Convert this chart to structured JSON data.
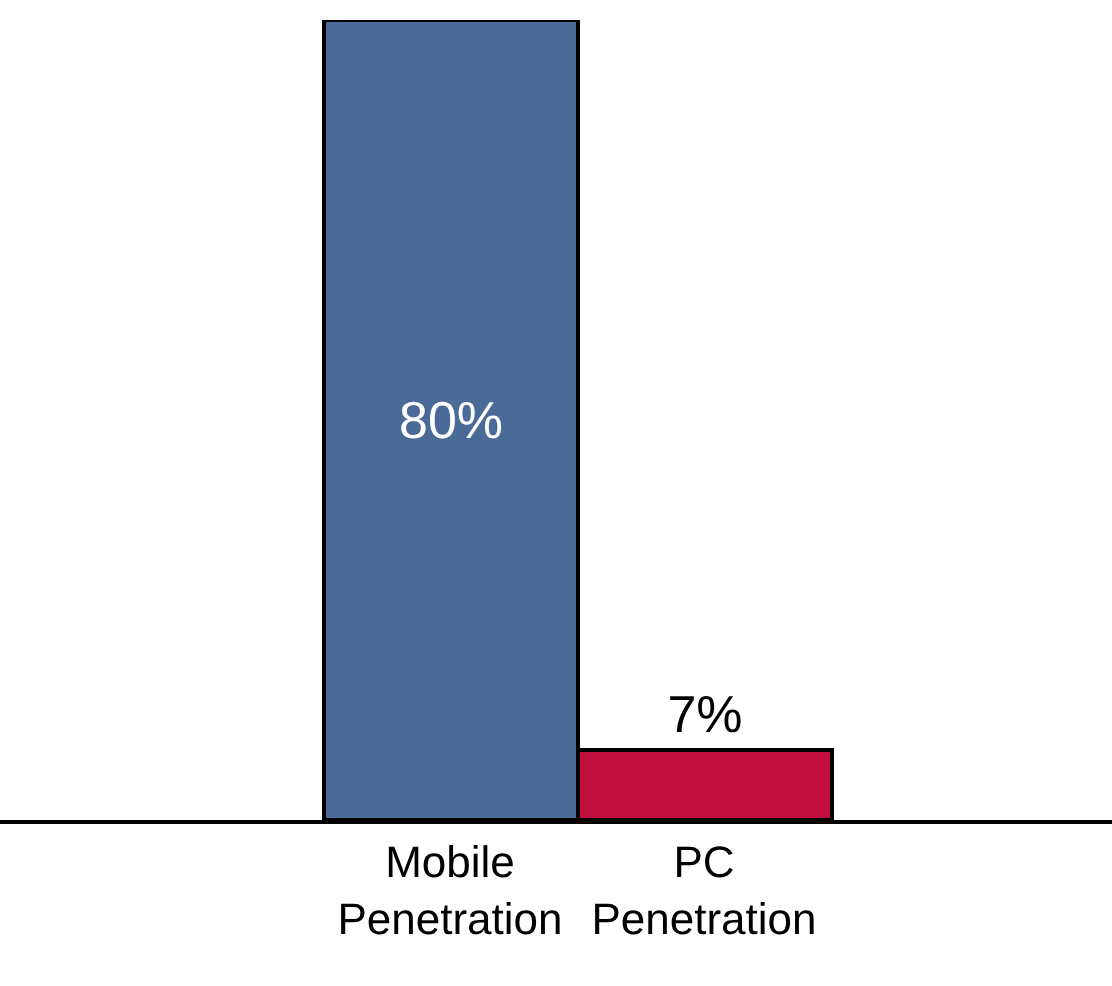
{
  "chart_data": {
    "type": "bar",
    "categories": [
      "Mobile Penetration",
      "PC Penetration"
    ],
    "values": [
      80,
      7
    ],
    "colors": [
      "#4a6a98",
      "#c20e3c"
    ],
    "value_labels": [
      "80%",
      "7%"
    ]
  }
}
